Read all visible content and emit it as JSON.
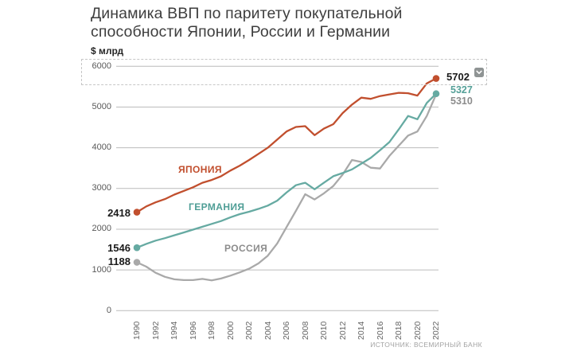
{
  "title": "Динамика ВВП по паритету покупательной\nспособности Японии, России и Германии",
  "unit_label": "$ млрд",
  "source": "ИСТОЧНИК: ВСЕМИРНЫЙ БАНК",
  "colors": {
    "japan": "#c14f2e",
    "germany": "#66aaa2",
    "russia": "#a9a9a9",
    "grid": "#bcbcbc",
    "title_text": "#3e3e3e",
    "selection_border": "#c6c6c6",
    "options_button": "#8f9494"
  },
  "options_button": {
    "icon": "chevron-down"
  },
  "chart_data": {
    "type": "line",
    "title": "Динамика ВВП по паритету покупательной способности Японии, России и Германии",
    "ylabel": "$ млрд",
    "xlabel": "",
    "ylim": [
      0,
      6000
    ],
    "y_ticks": [
      0,
      1000,
      2000,
      3000,
      4000,
      5000,
      6000
    ],
    "grid": "horizontal",
    "legend_position": "inline-on-lines",
    "x": [
      1990,
      1991,
      1992,
      1993,
      1994,
      1995,
      1996,
      1997,
      1998,
      1999,
      2000,
      2001,
      2002,
      2003,
      2004,
      2005,
      2006,
      2007,
      2008,
      2009,
      2010,
      2011,
      2012,
      2013,
      2014,
      2015,
      2016,
      2017,
      2018,
      2019,
      2020,
      2021,
      2022
    ],
    "x_tick_labels": [
      "1990",
      "1992",
      "1994",
      "1996",
      "1998",
      "2000",
      "2002",
      "2004",
      "2006",
      "2008",
      "2010",
      "2012",
      "2014",
      "2016",
      "2018",
      "2020",
      "2022"
    ],
    "series": [
      {
        "name": "ЯПОНИЯ",
        "color": "#c14f2e",
        "start_label": "2418",
        "end_label": "5702",
        "values": [
          2418,
          2560,
          2660,
          2740,
          2850,
          2940,
          3030,
          3140,
          3210,
          3300,
          3440,
          3560,
          3700,
          3850,
          4000,
          4200,
          4400,
          4510,
          4530,
          4310,
          4470,
          4580,
          4850,
          5060,
          5230,
          5200,
          5270,
          5310,
          5350,
          5340,
          5280,
          5580,
          5702
        ]
      },
      {
        "name": "ГЕРМАНИЯ",
        "color": "#66aaa2",
        "start_label": "1546",
        "end_label": "5327",
        "values": [
          1546,
          1640,
          1720,
          1780,
          1850,
          1920,
          1990,
          2060,
          2130,
          2200,
          2290,
          2370,
          2430,
          2500,
          2580,
          2700,
          2900,
          3080,
          3140,
          2980,
          3140,
          3300,
          3380,
          3470,
          3610,
          3750,
          3940,
          4140,
          4450,
          4780,
          4700,
          5100,
          5327
        ]
      },
      {
        "name": "РОССИЯ",
        "color": "#a9a9a9",
        "start_label": "1188",
        "end_label": "5310",
        "values": [
          1188,
          1080,
          930,
          830,
          770,
          750,
          750,
          780,
          745,
          790,
          860,
          940,
          1030,
          1160,
          1350,
          1650,
          2050,
          2450,
          2860,
          2730,
          2880,
          3060,
          3340,
          3700,
          3650,
          3510,
          3490,
          3800,
          4050,
          4300,
          4400,
          4780,
          5310
        ]
      }
    ]
  }
}
